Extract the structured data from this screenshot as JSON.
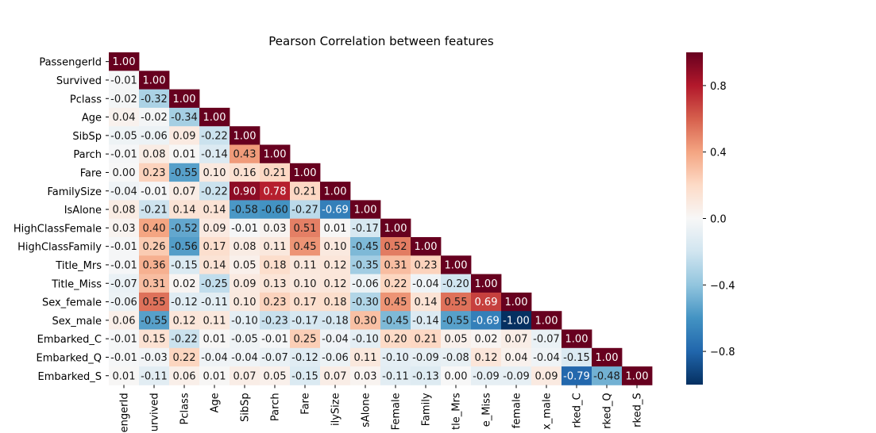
{
  "chart_data": {
    "type": "heatmap",
    "title": "Pearson Correlation between features",
    "row_labels": [
      "PassengerId",
      "Survived",
      "Pclass",
      "Age",
      "SibSp",
      "Parch",
      "Fare",
      "FamilySize",
      "IsAlone",
      "HighClassFemale",
      "HighClassFamily",
      "Title_Mrs",
      "Title_Miss",
      "Sex_female",
      "Sex_male",
      "Embarked_C",
      "Embarked_Q",
      "Embarked_S"
    ],
    "col_tick_labels": [
      "engerId",
      "urvived",
      "Pclass",
      "Age",
      "SibSp",
      "Parch",
      "Fare",
      "ilySize",
      "sAlone",
      "Female",
      "Family",
      "tle_Mrs",
      "e_Miss",
      "female",
      "x_male",
      "rked_C",
      "rked_Q",
      "rked_S"
    ],
    "matrix": [
      [
        1.0
      ],
      [
        -0.01,
        1.0
      ],
      [
        -0.02,
        -0.32,
        1.0
      ],
      [
        0.04,
        -0.02,
        -0.34,
        1.0
      ],
      [
        -0.05,
        -0.06,
        0.09,
        -0.22,
        1.0
      ],
      [
        -0.01,
        0.08,
        0.01,
        -0.14,
        0.43,
        1.0
      ],
      [
        -0.0,
        0.23,
        -0.55,
        0.1,
        0.16,
        0.21,
        1.0
      ],
      [
        -0.04,
        -0.01,
        0.07,
        -0.22,
        0.9,
        0.78,
        0.21,
        1.0
      ],
      [
        0.08,
        -0.21,
        0.14,
        0.14,
        -0.58,
        -0.6,
        -0.27,
        -0.69,
        1.0
      ],
      [
        0.03,
        0.4,
        -0.52,
        0.09,
        -0.01,
        0.03,
        0.51,
        0.01,
        -0.17,
        1.0
      ],
      [
        -0.01,
        0.26,
        -0.56,
        0.17,
        0.08,
        0.11,
        0.45,
        0.1,
        -0.45,
        0.52,
        1.0
      ],
      [
        -0.01,
        0.36,
        -0.15,
        0.14,
        0.05,
        0.18,
        0.11,
        0.12,
        -0.35,
        0.31,
        0.23,
        1.0
      ],
      [
        -0.07,
        0.31,
        0.02,
        -0.25,
        0.09,
        0.13,
        0.1,
        0.12,
        -0.06,
        0.22,
        -0.04,
        -0.2,
        1.0
      ],
      [
        -0.06,
        0.55,
        -0.12,
        -0.11,
        0.1,
        0.23,
        0.17,
        0.18,
        -0.3,
        0.45,
        0.14,
        0.55,
        0.69,
        1.0
      ],
      [
        0.06,
        -0.55,
        0.12,
        0.11,
        -0.1,
        -0.23,
        -0.17,
        -0.18,
        0.3,
        -0.45,
        -0.14,
        -0.55,
        -0.69,
        -1.0,
        1.0
      ],
      [
        -0.01,
        0.15,
        -0.22,
        0.01,
        -0.05,
        -0.01,
        0.25,
        -0.04,
        -0.1,
        0.2,
        0.21,
        0.05,
        0.02,
        0.07,
        -0.07,
        1.0
      ],
      [
        -0.01,
        -0.03,
        0.22,
        -0.04,
        -0.04,
        -0.07,
        -0.12,
        -0.06,
        0.11,
        -0.1,
        -0.09,
        -0.08,
        0.12,
        0.04,
        -0.04,
        -0.15,
        1.0
      ],
      [
        0.01,
        -0.11,
        0.06,
        0.01,
        0.07,
        0.05,
        -0.15,
        0.07,
        0.03,
        -0.11,
        -0.13,
        0.0,
        -0.09,
        -0.09,
        0.09,
        -0.79,
        -0.48,
        1.0
      ]
    ],
    "value_range": [
      -1,
      1
    ],
    "colormap": "RdBu_r",
    "colorbar_ticks": [
      -0.8,
      -0.4,
      0.0,
      0.4,
      0.8
    ],
    "colorbar_tick_labels": [
      "−0.8",
      "−0.4",
      "0.0",
      "0.4",
      "0.8"
    ],
    "mask": "upper-triangle",
    "annotations": true,
    "grid": false
  }
}
